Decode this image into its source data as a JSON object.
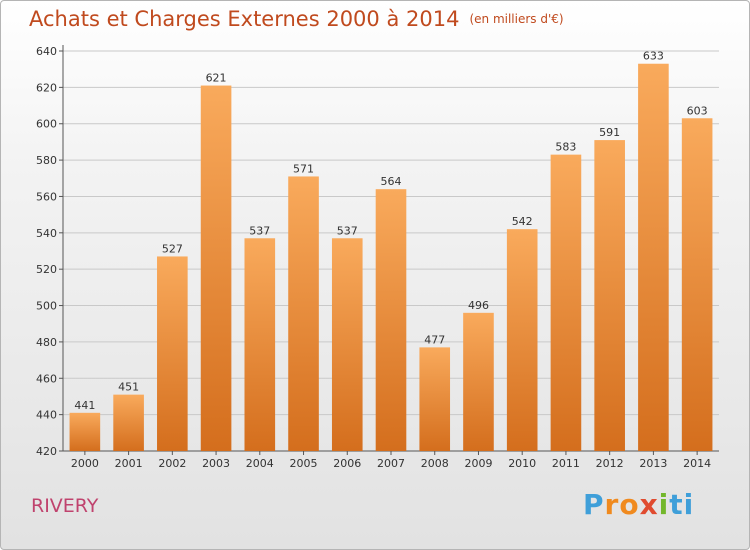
{
  "title": "Achats et Charges Externes 2000 à 2014",
  "unit": "(en milliers d'€)",
  "commune": "RIVERY",
  "logo": [
    "P",
    "r",
    "o",
    "x",
    "i",
    "ti"
  ],
  "colors": {
    "bar_light": "#f9aa5c",
    "bar_dark": "#d46e1d",
    "title": "#c04a1e",
    "commune": "#c0436e"
  },
  "chart_data": {
    "type": "bar",
    "title": "Achats et Charges Externes 2000 à 2014",
    "subtitle": "(en milliers d'€)",
    "xlabel": "",
    "ylabel": "",
    "categories": [
      "2000",
      "2001",
      "2002",
      "2003",
      "2004",
      "2005",
      "2006",
      "2007",
      "2008",
      "2009",
      "2010",
      "2011",
      "2012",
      "2013",
      "2014"
    ],
    "values": [
      441,
      451,
      527,
      621,
      537,
      571,
      537,
      564,
      477,
      496,
      542,
      583,
      591,
      633,
      603
    ],
    "ylim": [
      420,
      640
    ],
    "yticks": [
      420,
      440,
      460,
      480,
      500,
      520,
      540,
      560,
      580,
      600,
      620,
      640
    ],
    "grid": true
  }
}
